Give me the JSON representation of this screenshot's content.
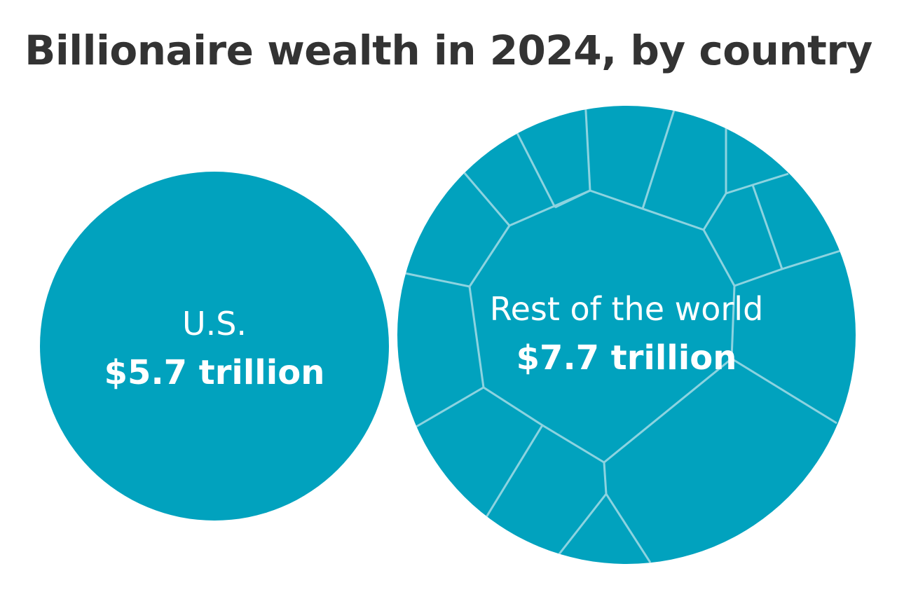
{
  "chart_data": {
    "type": "bubble",
    "title": "Billionaire wealth in 2024, by country",
    "unit": "trillion",
    "fill_color": "#01A2BE",
    "divider_color": "#8CD3E0",
    "bubbles": [
      {
        "name": "U.S.",
        "value": 5.7,
        "value_label": "$5.7 trillion",
        "subdivided": false
      },
      {
        "name": "Rest of the world",
        "value": 7.7,
        "value_label": "$7.7 trillion",
        "subdivided": true
      }
    ]
  }
}
